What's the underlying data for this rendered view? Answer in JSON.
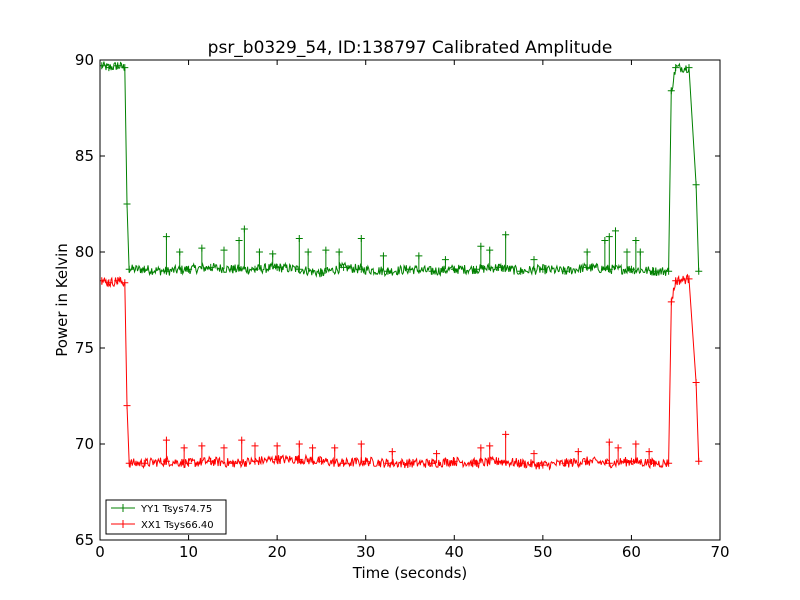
{
  "chart_data": {
    "type": "line",
    "title": "psr_b0329_54, ID:138797 Calibrated Amplitude",
    "xlabel": "Time (seconds)",
    "ylabel": "Power in Kelvin",
    "xlim": [
      0,
      70
    ],
    "ylim": [
      65,
      90
    ],
    "xticks": [
      0,
      10,
      20,
      30,
      40,
      50,
      60,
      70
    ],
    "yticks": [
      65,
      70,
      75,
      80,
      85,
      90
    ],
    "x_tick_labels": [
      "0",
      "10",
      "20",
      "30",
      "40",
      "50",
      "60",
      "70"
    ],
    "y_tick_labels": [
      "65",
      "70",
      "75",
      "80",
      "85",
      "90"
    ],
    "grid": false,
    "legend_position": "lower-left",
    "marker": "+",
    "series": [
      {
        "name": "YY1 Tsys74.75",
        "color": "#008000",
        "x": [
          0.2,
          1.0,
          2.0,
          2.8,
          3.05,
          3.3,
          5,
          7.5,
          10,
          12.5,
          15,
          17.5,
          20,
          22.5,
          25,
          27.5,
          29.5,
          32.5,
          35,
          37.5,
          40,
          42.5,
          45,
          47.5,
          50,
          52.5,
          55,
          57.5,
          60,
          62.5,
          64.2,
          64.5,
          65.0,
          66.5,
          67.3,
          67.6
        ],
        "values": [
          89.7,
          89.6,
          89.7,
          89.6,
          82.5,
          79.1,
          79.1,
          79.0,
          79.1,
          79.2,
          79.1,
          79.1,
          79.2,
          79.1,
          78.9,
          79.2,
          79.1,
          79.0,
          79.1,
          79.0,
          79.1,
          79.1,
          79.2,
          79.0,
          79.1,
          79.0,
          79.2,
          79.1,
          79.1,
          79.0,
          79.0,
          88.4,
          89.6,
          89.6,
          83.5,
          79.0
        ],
        "spikes": [
          {
            "x": 7.5,
            "y": 80.8
          },
          {
            "x": 9.0,
            "y": 80.0
          },
          {
            "x": 11.5,
            "y": 80.2
          },
          {
            "x": 14.0,
            "y": 80.1
          },
          {
            "x": 15.7,
            "y": 80.6
          },
          {
            "x": 16.3,
            "y": 81.2
          },
          {
            "x": 18.0,
            "y": 80.0
          },
          {
            "x": 19.5,
            "y": 79.9
          },
          {
            "x": 22.5,
            "y": 80.7
          },
          {
            "x": 23.5,
            "y": 80.0
          },
          {
            "x": 25.5,
            "y": 80.1
          },
          {
            "x": 27.0,
            "y": 80.0
          },
          {
            "x": 29.5,
            "y": 80.7
          },
          {
            "x": 32.0,
            "y": 79.8
          },
          {
            "x": 36.0,
            "y": 79.8
          },
          {
            "x": 39.0,
            "y": 79.6
          },
          {
            "x": 43.0,
            "y": 80.3
          },
          {
            "x": 44.0,
            "y": 80.1
          },
          {
            "x": 45.8,
            "y": 80.9
          },
          {
            "x": 49.0,
            "y": 79.6
          },
          {
            "x": 55.0,
            "y": 80.0
          },
          {
            "x": 57.0,
            "y": 80.6
          },
          {
            "x": 57.5,
            "y": 80.8
          },
          {
            "x": 58.2,
            "y": 81.1
          },
          {
            "x": 59.5,
            "y": 80.0
          },
          {
            "x": 60.5,
            "y": 80.6
          },
          {
            "x": 61.0,
            "y": 80.0
          }
        ]
      },
      {
        "name": "XX1 Tsys66.40",
        "color": "#ff0000",
        "x": [
          0.2,
          1.0,
          2.0,
          2.8,
          3.05,
          3.3,
          5,
          7.5,
          10,
          12.5,
          15,
          17.5,
          20,
          22.5,
          25,
          27.5,
          30,
          32.5,
          35,
          37.5,
          40,
          42.5,
          45,
          47.5,
          50,
          52.5,
          55,
          57.5,
          60,
          62.5,
          64.2,
          64.5,
          65.0,
          66.5,
          67.3,
          67.6
        ],
        "values": [
          78.5,
          78.4,
          78.5,
          78.4,
          72.0,
          69.0,
          69.0,
          69.1,
          69.0,
          69.1,
          69.0,
          69.1,
          69.2,
          69.2,
          69.1,
          69.0,
          69.1,
          69.0,
          69.0,
          69.0,
          69.1,
          69.0,
          69.1,
          69.0,
          68.9,
          69.0,
          69.1,
          69.0,
          69.1,
          69.0,
          69.0,
          77.4,
          78.5,
          78.6,
          73.2,
          69.1
        ],
        "spikes": [
          {
            "x": 7.5,
            "y": 70.2
          },
          {
            "x": 9.5,
            "y": 69.8
          },
          {
            "x": 11.5,
            "y": 69.9
          },
          {
            "x": 14.0,
            "y": 69.8
          },
          {
            "x": 16.0,
            "y": 70.2
          },
          {
            "x": 17.5,
            "y": 69.9
          },
          {
            "x": 20.0,
            "y": 69.9
          },
          {
            "x": 22.5,
            "y": 70.0
          },
          {
            "x": 24.0,
            "y": 69.8
          },
          {
            "x": 26.5,
            "y": 69.8
          },
          {
            "x": 29.5,
            "y": 70.0
          },
          {
            "x": 33.0,
            "y": 69.6
          },
          {
            "x": 38.0,
            "y": 69.5
          },
          {
            "x": 43.0,
            "y": 69.8
          },
          {
            "x": 44.0,
            "y": 69.9
          },
          {
            "x": 45.8,
            "y": 70.5
          },
          {
            "x": 49.0,
            "y": 69.5
          },
          {
            "x": 54.0,
            "y": 69.6
          },
          {
            "x": 57.5,
            "y": 70.1
          },
          {
            "x": 58.5,
            "y": 69.8
          },
          {
            "x": 60.5,
            "y": 70.0
          },
          {
            "x": 62.0,
            "y": 69.6
          }
        ]
      }
    ]
  }
}
